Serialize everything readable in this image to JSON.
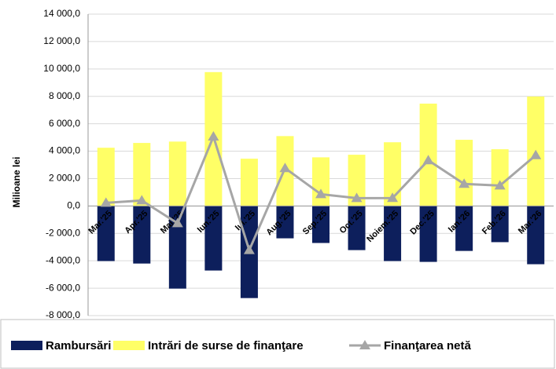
{
  "chart_data": {
    "type": "bar_line",
    "y_label": "Milioane lei",
    "categories": [
      "Mar.'25",
      "Apr.'25",
      "Mai.'25",
      "Iun.'25",
      "Iul.'25",
      "Aug.'25",
      "Sep.'25",
      "Oct.'25",
      "Noiem.'25",
      "Dec.'25",
      "Ian.'26",
      "Feb.'26",
      "Mar.'26"
    ],
    "series": [
      {
        "name": "Rambursări",
        "color": "#0d1f5c",
        "kind": "bar",
        "values": [
          -4020,
          -4200,
          -6030,
          -4710,
          -6720,
          -2360,
          -2700,
          -3220,
          -4020,
          -4080,
          -3280,
          -2640,
          -4250
        ]
      },
      {
        "name": "Intrări de surse de finanţare",
        "color": "#ffff66",
        "kind": "bar",
        "values": [
          4250,
          4600,
          4700,
          9770,
          3450,
          5100,
          3550,
          3740,
          4650,
          7470,
          4830,
          4140,
          7990
        ]
      },
      {
        "name": "Finanţarea netă",
        "color": "#a6a6a6",
        "kind": "line",
        "values": [
          230,
          400,
          -1260,
          5060,
          -3220,
          2760,
          860,
          570,
          580,
          3330,
          1610,
          1490,
          3700
        ]
      }
    ],
    "ylim": [
      -8000,
      14000
    ],
    "yticks": [
      {
        "value": -8000,
        "label": "-8 000,0"
      },
      {
        "value": -6000,
        "label": "-6 000,0"
      },
      {
        "value": -4000,
        "label": "-4 000,0"
      },
      {
        "value": -2000,
        "label": "-2 000,0"
      },
      {
        "value": 0,
        "label": "0,0"
      },
      {
        "value": 2000,
        "label": "2 000,0"
      },
      {
        "value": 4000,
        "label": "4 000,0"
      },
      {
        "value": 6000,
        "label": "6 000,0"
      },
      {
        "value": 8000,
        "label": "8 000,0"
      },
      {
        "value": 10000,
        "label": "10 000,0"
      },
      {
        "value": 12000,
        "label": "12 000,0"
      },
      {
        "value": 14000,
        "label": "14 000,0"
      }
    ],
    "grid": true,
    "legend": "bottom"
  }
}
